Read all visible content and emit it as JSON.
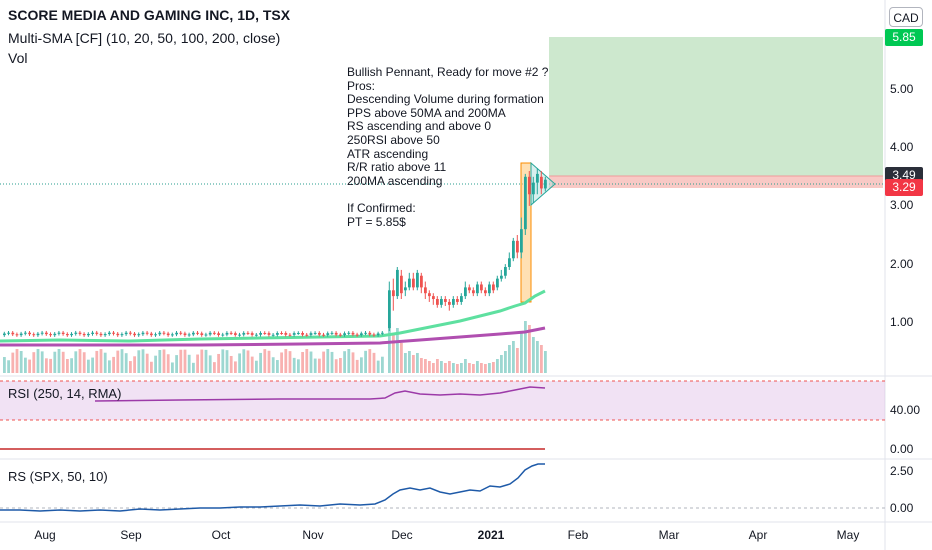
{
  "header": {
    "title": "SCORE MEDIA AND GAMING INC, 1D, TSX",
    "indicator": "Multi-SMA [CF] (10, 20, 50, 100, 200, close)",
    "volume": "Vol"
  },
  "currency": "CAD",
  "note_lines": [
    "Bullish Pennant, Ready for move #2 ?",
    "Pros:",
    "Descending Volume during formation",
    "PPS above 50MA and 200MA",
    "RS ascending and above 0",
    "250RSI above 50",
    "ATR ascending",
    "R/R ratio above 11",
    "200MA ascending",
    "",
    "If Confirmed:",
    "PT = 5.85$"
  ],
  "price_tags": {
    "target": "5.85",
    "last": "3.49",
    "stop": "3.29"
  },
  "price_axis_ticks": [
    "5.00",
    "4.00",
    "3.00",
    "2.00",
    "1.00"
  ],
  "rsi": {
    "label": "RSI (250, 14, RMA)",
    "ticks": [
      "40.00",
      "0.00"
    ]
  },
  "rs": {
    "label": "RS (SPX, 50, 10)",
    "ticks": [
      "2.50",
      "0.00"
    ]
  },
  "time_axis": [
    "Aug",
    "Sep",
    "Oct",
    "Nov",
    "Dec",
    "2021",
    "Feb",
    "Mar",
    "Apr",
    "May"
  ],
  "colors": {
    "up": "#26a69a",
    "down": "#ef5350",
    "target_zone": "#c8e6c9",
    "stop_zone": "#f8c9c5",
    "sma_green": "#5ee0a0",
    "sma_purple": "#b04fb0",
    "rs_line": "#2962ff",
    "rsi_line": "#9c3aa8",
    "target_tag": "#00c853",
    "last_tag": "#2a2e39",
    "stop_tag": "#f23645"
  }
}
